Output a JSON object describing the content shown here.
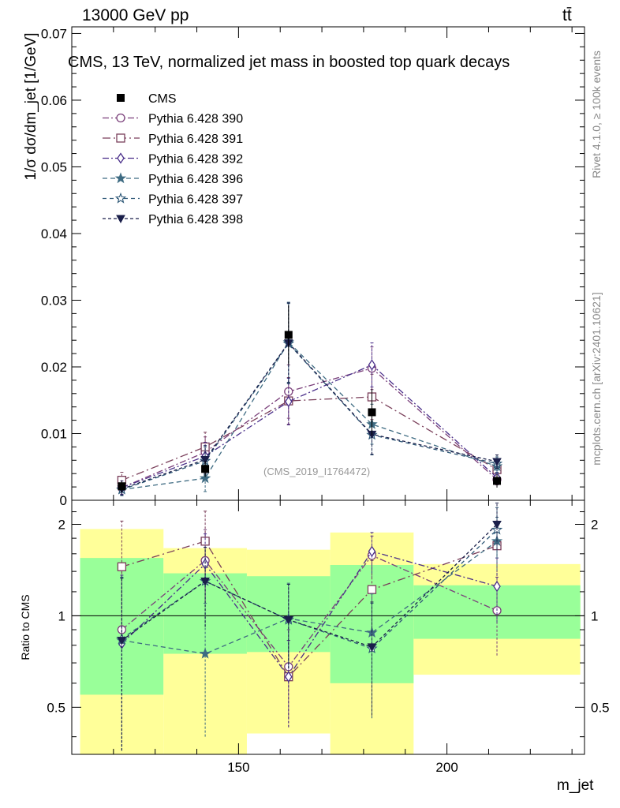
{
  "header": {
    "energy_label": "13000 GeV pp",
    "process_label": "tt̄"
  },
  "side_labels": {
    "rivet": "Rivet 4.1.0, ≥ 100k events",
    "mcplots": "mcplots.cern.ch [arXiv:2401.10621]"
  },
  "chart_data": {
    "type": "scatter",
    "title": "CMS, 13 TeV, normalized jet mass in boosted top quark decays",
    "analysis_tag": "(CMS_2019_I1764472)",
    "xlabel": "m_jet",
    "ylabel": "1/σ dσ/dm_jet [1/GeV]",
    "ratio_ylabel": "Ratio to CMS",
    "xlim": [
      110,
      233
    ],
    "ylim": [
      0,
      0.071
    ],
    "ratio_ylim": [
      0.35,
      2.4
    ],
    "x_ticks": [
      150,
      200
    ],
    "y_ticks": [
      0,
      0.01,
      0.02,
      0.03,
      0.04,
      0.05,
      0.06,
      0.07
    ],
    "y_tick_labels": [
      "0",
      "0.01",
      "0.02",
      "0.03",
      "0.04",
      "0.05",
      "0.06",
      "0.07"
    ],
    "ratio_ticks": [
      0.5,
      1,
      2
    ],
    "ratio_tick_labels": [
      "0.5",
      "1",
      "2"
    ],
    "x": [
      122,
      142,
      162,
      182,
      212
    ],
    "bin_edges": [
      [
        112,
        132
      ],
      [
        132,
        152
      ],
      [
        152,
        172
      ],
      [
        172,
        192
      ],
      [
        192,
        232
      ]
    ],
    "data": {
      "name": "CMS",
      "values": [
        0.0021,
        0.0047,
        0.0248,
        0.0132,
        0.0029
      ],
      "errors": [
        0.0009,
        0.0012,
        0.0045,
        0.0035,
        0.001
      ],
      "band_inner": [
        [
          0.55,
          1.55
        ],
        [
          0.75,
          1.38
        ],
        [
          0.76,
          1.35
        ],
        [
          0.6,
          1.47
        ],
        [
          0.84,
          1.26
        ]
      ],
      "band_outer": [
        [
          0.3,
          1.93
        ],
        [
          0.3,
          1.67
        ],
        [
          0.41,
          1.65
        ],
        [
          0.3,
          1.88
        ],
        [
          0.64,
          1.48
        ]
      ]
    },
    "series": [
      {
        "name": "Pythia 6.428 390",
        "color": "#7a3f7a",
        "marker": "circle-open",
        "dash": "8,3,2,3",
        "values": [
          0.0019,
          0.0072,
          0.0163,
          0.0198,
          0.0031
        ],
        "errors": [
          0.001,
          0.0023,
          0.004,
          0.0032,
          0.0008
        ],
        "ratio": [
          0.9,
          1.52,
          0.68,
          1.58,
          1.04
        ],
        "ratio_err": [
          0.55,
          0.4,
          0.22,
          0.25,
          0.3
        ]
      },
      {
        "name": "Pythia 6.428 391",
        "color": "#7a3f5a",
        "marker": "square-open",
        "dash": "10,4,2,4",
        "values": [
          0.003,
          0.008,
          0.0149,
          0.0155,
          0.0046
        ],
        "errors": [
          0.0012,
          0.0022,
          0.0035,
          0.0034,
          0.001
        ],
        "ratio": [
          1.45,
          1.76,
          0.63,
          1.22,
          1.7
        ],
        "ratio_err": [
          0.6,
          0.45,
          0.2,
          0.3,
          0.35
        ]
      },
      {
        "name": "Pythia 6.428 392",
        "color": "#4a2f8a",
        "marker": "diamond-open",
        "dash": "8,3,2,3",
        "values": [
          0.0019,
          0.0066,
          0.0148,
          0.0203,
          0.0034
        ],
        "errors": [
          0.001,
          0.0021,
          0.0035,
          0.0033,
          0.0008
        ],
        "ratio": [
          0.81,
          1.48,
          0.63,
          1.63,
          1.25
        ],
        "ratio_err": [
          0.55,
          0.38,
          0.2,
          0.25,
          0.3
        ]
      },
      {
        "name": "Pythia 6.428 396",
        "color": "#3e6b82",
        "marker": "star-filled",
        "dash": "6,4",
        "values": [
          0.0016,
          0.0033,
          0.0237,
          0.0114,
          0.0051
        ],
        "errors": [
          0.0009,
          0.002,
          0.006,
          0.003,
          0.001
        ],
        "ratio": [
          0.83,
          0.75,
          0.98,
          0.88,
          1.76
        ],
        "ratio_err": [
          0.5,
          0.35,
          0.3,
          0.3,
          0.35
        ]
      },
      {
        "name": "Pythia 6.428 397",
        "color": "#2e5877",
        "marker": "star-open",
        "dash": "5,4",
        "values": [
          0.0016,
          0.0059,
          0.0235,
          0.0098,
          0.0055
        ],
        "errors": [
          0.0009,
          0.0021,
          0.006,
          0.003,
          0.001
        ],
        "ratio": [
          0.84,
          1.3,
          0.97,
          0.78,
          1.92
        ],
        "ratio_err": [
          0.5,
          0.38,
          0.3,
          0.32,
          0.35
        ]
      },
      {
        "name": "Pythia 6.428 398",
        "color": "#1a1f4a",
        "marker": "triangle-down-filled",
        "dash": "4,3",
        "values": [
          0.0017,
          0.0061,
          0.0236,
          0.0099,
          0.0058
        ],
        "errors": [
          0.0009,
          0.0021,
          0.006,
          0.003,
          0.001
        ],
        "ratio": [
          0.83,
          1.3,
          0.97,
          0.79,
          2.0
        ],
        "ratio_err": [
          0.5,
          0.38,
          0.3,
          0.32,
          0.35
        ]
      }
    ]
  }
}
